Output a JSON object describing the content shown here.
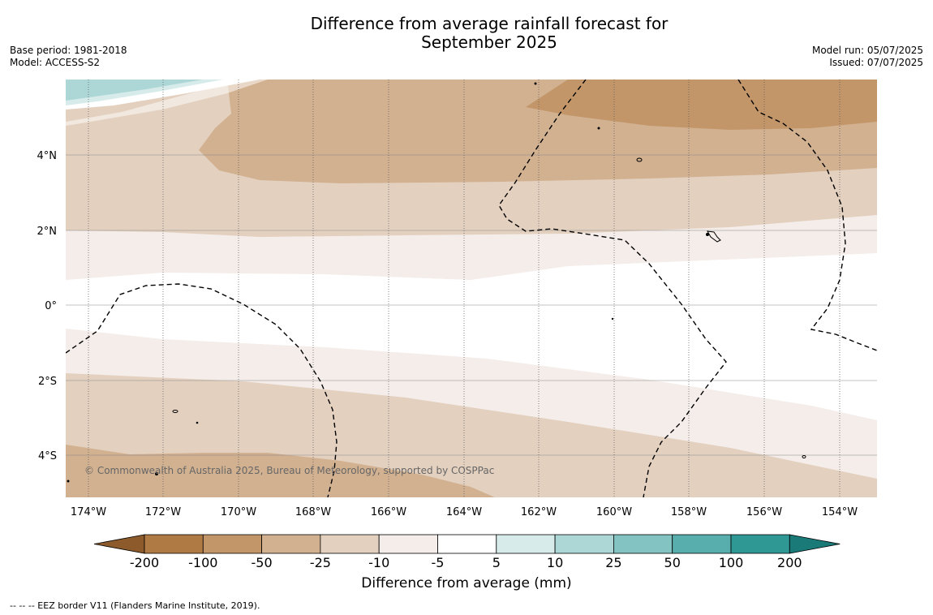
{
  "title_line1": "Difference from average rainfall forecast for",
  "title_line2": "September 2025",
  "meta_left": {
    "base_period": "Base period: 1981-2018",
    "model": "Model: ACCESS-S2"
  },
  "meta_right": {
    "model_run": "Model run: 05/07/2025",
    "issued": "Issued: 07/07/2025"
  },
  "map": {
    "lon_ticks": [
      "174°W",
      "172°W",
      "170°W",
      "168°W",
      "166°W",
      "164°W",
      "162°W",
      "160°W",
      "158°W",
      "156°W",
      "154°W"
    ],
    "lat_ticks": [
      "4°N",
      "2°N",
      "0°",
      "2°S",
      "4°S"
    ],
    "copyright": "© Commonwealth of Australia 2025, Bureau of Meteorology, supported by COSPPac"
  },
  "colorbar": {
    "title": "Difference from average (mm)",
    "ticks": [
      "-200",
      "-100",
      "-50",
      "-25",
      "-10",
      "-5",
      "5",
      "10",
      "25",
      "50",
      "100",
      "200"
    ],
    "colors": [
      "#8c5a2b",
      "#b07a44",
      "#c29669",
      "#d2b191",
      "#e3d0bf",
      "#f4ede9",
      "#ffffff",
      "#d7ecea",
      "#add7d7",
      "#83c3c1",
      "#58aeac",
      "#2f9895",
      "#1a7a78"
    ]
  },
  "footnote": "--  --  -- EEZ border V11 (Flanders Marine Institute, 2019)."
}
